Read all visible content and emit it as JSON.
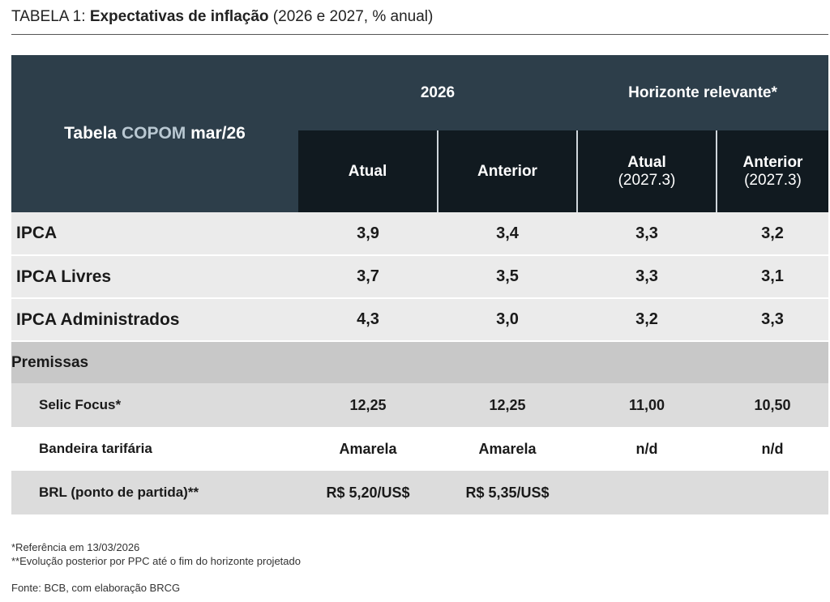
{
  "title": {
    "prefix": "TABELA 1: ",
    "bold": "Expectativas de inflação",
    "suffix": " (2026 e 2027, % anual)"
  },
  "header": {
    "row_title_1": "Tabela ",
    "row_title_accent": "COPOM",
    "row_title_2": " mar/26",
    "group_2026": "2026",
    "group_horizonte": "Horizonte relevante*",
    "col_atual": "Atual",
    "col_anterior": "Anterior",
    "col_h_atual": "Atual",
    "col_h_atual_sub": "(2027.3)",
    "col_h_anterior": "Anterior",
    "col_h_anterior_sub": "(2027.3)"
  },
  "ipca_rows": [
    {
      "label": "IPCA",
      "v": [
        "3,9",
        "3,4",
        "3,3",
        "3,2"
      ]
    },
    {
      "label": "IPCA Livres",
      "v": [
        "3,7",
        "3,5",
        "3,3",
        "3,1"
      ]
    },
    {
      "label": "IPCA Administrados",
      "v": [
        "4,3",
        "3,0",
        "3,2",
        "3,3"
      ]
    }
  ],
  "premissas_label": "Premissas",
  "premissas_rows": [
    {
      "label": "Selic Focus*",
      "v": [
        "12,25",
        "12,25",
        "11,00",
        "10,50"
      ]
    },
    {
      "label": "Bandeira tarifária",
      "v": [
        "Amarela",
        "Amarela",
        "n/d",
        "n/d"
      ]
    },
    {
      "label": "BRL (ponto de partida)**",
      "v": [
        "R$ 5,20/US$",
        "R$ 5,35/US$",
        "",
        ""
      ]
    }
  ],
  "notes": [
    "*Referência em 13/03/2026",
    "**Evolução posterior por PPC até o fim do horizonte projetado"
  ],
  "source": "Fonte: BCB, com elaboração BRCG",
  "colors": {
    "header_dark": "#2d3e4a",
    "header_darker": "#111a20",
    "accent": "#b9c8d2",
    "row_light": "#ebebeb",
    "row_premissas": "#c8c8c8",
    "row_alt": "#dcdcdc"
  }
}
